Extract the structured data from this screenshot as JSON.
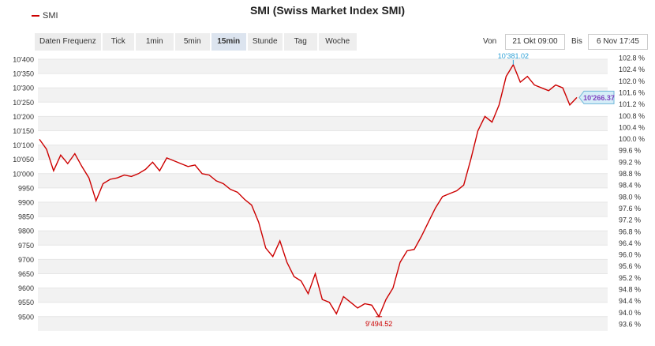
{
  "chart_data": {
    "type": "line",
    "title": "SMI (Swiss Market Index SMI)",
    "series": [
      {
        "name": "SMI",
        "color": "#cc0000",
        "values": [
          10120,
          10085,
          10010,
          10065,
          10035,
          10070,
          10025,
          9985,
          9905,
          9965,
          9980,
          9985,
          9995,
          9990,
          10000,
          10015,
          10040,
          10010,
          10055,
          10045,
          10035,
          10025,
          10030,
          10000,
          9995,
          9975,
          9965,
          9945,
          9935,
          9910,
          9890,
          9830,
          9740,
          9710,
          9765,
          9690,
          9640,
          9625,
          9580,
          9650,
          9560,
          9550,
          9510,
          9570,
          9550,
          9530,
          9545,
          9540,
          9500,
          9560,
          9600,
          9690,
          9730,
          9735,
          9780,
          9830,
          9880,
          9920,
          9930,
          9940,
          9960,
          10050,
          10150,
          10200,
          10180,
          10240,
          10340,
          10381,
          10320,
          10340,
          10310,
          10300,
          10290,
          10310,
          10300,
          10240,
          10266.37
        ]
      },
      {
        "name": "",
        "values": []
      }
    ],
    "x_range": [
      "21 Okt 09:00",
      "6 Nov 17:45"
    ],
    "y_left_ticks": [
      "10'400",
      "10'350",
      "10'300",
      "10'250",
      "10'200",
      "10'150",
      "10'100",
      "10'050",
      "10'000",
      "9950",
      "9900",
      "9850",
      "9800",
      "9750",
      "9700",
      "9650",
      "9600",
      "9550",
      "9500"
    ],
    "y_right_ticks": [
      "102.8 %",
      "102.4 %",
      "102.0 %",
      "101.6 %",
      "101.2 %",
      "100.8 %",
      "100.4 %",
      "100.0 %",
      "99.6 %",
      "99.2 %",
      "98.8 %",
      "98.4 %",
      "98.0 %",
      "97.6 %",
      "97.2 %",
      "96.8 %",
      "96.4 %",
      "96.0 %",
      "95.6 %",
      "95.2 %",
      "94.8 %",
      "94.4 %",
      "94.0 %",
      "93.6 %"
    ],
    "ylim": [
      9475,
      10400
    ],
    "high_label": "10'381.02",
    "low_label": "9'494.52",
    "last_label": "10'266.37",
    "grid": true
  },
  "toolbar": {
    "label": "Daten Frequenz",
    "buttons": [
      "Tick",
      "1min",
      "5min",
      "15min",
      "Stunde",
      "Tag",
      "Woche"
    ],
    "active": "15min"
  },
  "range": {
    "from_label": "Von",
    "from_value": "21 Okt 09:00",
    "to_label": "Bis",
    "to_value": "6 Nov 17:45"
  },
  "colors": {
    "line": "#cc0000",
    "high": "#2a9fd6",
    "low": "#cc0000",
    "badge": "#7f3fbf",
    "badge_bg": "#d6eef8"
  }
}
